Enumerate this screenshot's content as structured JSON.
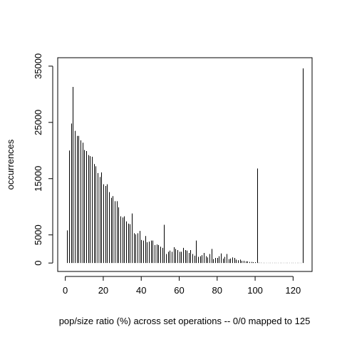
{
  "chart_data": {
    "type": "bar",
    "xlabel": "pop/size ratio (%) across set operations -- 0/0 mapped to 125",
    "ylabel": "occurrences",
    "xlim": [
      -4,
      130
    ],
    "ylim": [
      -1500,
      36500
    ],
    "x_ticks": [
      0,
      20,
      40,
      60,
      80,
      100,
      120
    ],
    "y_ticks": [
      0,
      5000,
      15000,
      25000,
      35000
    ],
    "grid": false,
    "x": [
      1,
      2,
      3,
      4,
      5,
      6,
      7,
      8,
      9,
      10,
      11,
      12,
      13,
      14,
      15,
      16,
      17,
      18,
      19,
      20,
      21,
      22,
      23,
      24,
      25,
      26,
      27,
      28,
      29,
      30,
      31,
      32,
      33,
      34,
      35,
      36,
      37,
      38,
      39,
      40,
      41,
      42,
      43,
      44,
      45,
      46,
      47,
      48,
      49,
      50,
      51,
      52,
      53,
      54,
      55,
      56,
      57,
      58,
      59,
      60,
      61,
      62,
      63,
      64,
      65,
      66,
      67,
      68,
      69,
      70,
      71,
      72,
      73,
      74,
      75,
      76,
      77,
      78,
      79,
      80,
      81,
      82,
      83,
      84,
      85,
      86,
      87,
      88,
      89,
      90,
      91,
      92,
      93,
      94,
      95,
      96,
      97,
      98,
      99,
      100,
      101,
      102,
      103,
      104,
      105,
      106,
      107,
      108,
      109,
      110,
      111,
      112,
      113,
      114,
      115,
      116,
      117,
      118,
      119,
      120,
      121,
      122,
      123,
      124,
      125
    ],
    "values": [
      5800,
      20000,
      24800,
      31300,
      23500,
      22600,
      22600,
      21800,
      21400,
      20100,
      19900,
      19200,
      19000,
      18900,
      17600,
      17200,
      16000,
      15300,
      16100,
      14000,
      13700,
      14000,
      12600,
      11600,
      11900,
      11000,
      11000,
      9900,
      8300,
      8100,
      8300,
      7400,
      7000,
      6900,
      8800,
      5300,
      5100,
      5300,
      5700,
      4100,
      4000,
      4800,
      3700,
      3800,
      4000,
      4000,
      3200,
      3300,
      3200,
      2900,
      2700,
      6800,
      1600,
      2000,
      2200,
      2000,
      2800,
      2500,
      2300,
      2000,
      2000,
      2700,
      2300,
      2200,
      1800,
      2300,
      1600,
      1300,
      4000,
      1100,
      1200,
      1400,
      1800,
      1200,
      1000,
      1600,
      2500,
      700,
      900,
      900,
      1200,
      1700,
      800,
      1100,
      1600,
      700,
      800,
      1000,
      900,
      600,
      500,
      600,
      400,
      400,
      300,
      300,
      200,
      200,
      150,
      150,
      16800,
      60,
      50,
      40,
      40,
      40,
      40,
      30,
      30,
      30,
      30,
      30,
      30,
      30,
      30,
      30,
      30,
      30,
      30,
      30,
      30,
      30,
      30,
      30,
      34600
    ]
  }
}
